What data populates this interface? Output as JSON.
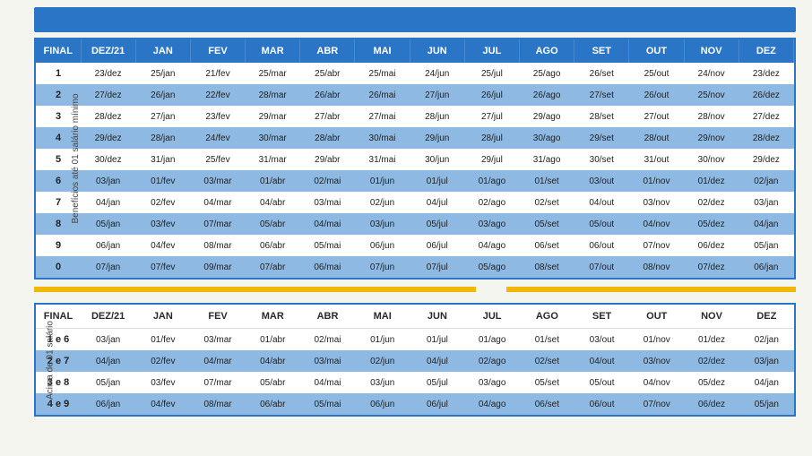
{
  "colors": {
    "primary": "#2b75c6",
    "row_alt": "#8db9e3",
    "row_base": "#ffffff",
    "accent": "#f2b705",
    "text": "#222222",
    "header_text": "#ffffff"
  },
  "headers": [
    "FINAL",
    "DEZ/21",
    "JAN",
    "FEV",
    "MAR",
    "ABR",
    "MAI",
    "JUN",
    "JUL",
    "AGO",
    "SET",
    "OUT",
    "NOV",
    "DEZ"
  ],
  "section1": {
    "label": "Benefícios até 01 salário mínimo",
    "rows": [
      [
        "1",
        "23/dez",
        "25/jan",
        "21/fev",
        "25/mar",
        "25/abr",
        "25/mai",
        "24/jun",
        "25/jul",
        "25/ago",
        "26/set",
        "25/out",
        "24/nov",
        "23/dez"
      ],
      [
        "2",
        "27/dez",
        "26/jan",
        "22/fev",
        "28/mar",
        "26/abr",
        "26/mai",
        "27/jun",
        "26/jul",
        "26/ago",
        "27/set",
        "26/out",
        "25/nov",
        "26/dez"
      ],
      [
        "3",
        "28/dez",
        "27/jan",
        "23/fev",
        "29/mar",
        "27/abr",
        "27/mai",
        "28/jun",
        "27/jul",
        "29/ago",
        "28/set",
        "27/out",
        "28/nov",
        "27/dez"
      ],
      [
        "4",
        "29/dez",
        "28/jan",
        "24/fev",
        "30/mar",
        "28/abr",
        "30/mai",
        "29/jun",
        "28/jul",
        "30/ago",
        "29/set",
        "28/out",
        "29/nov",
        "28/dez"
      ],
      [
        "5",
        "30/dez",
        "31/jan",
        "25/fev",
        "31/mar",
        "29/abr",
        "31/mai",
        "30/jun",
        "29/jul",
        "31/ago",
        "30/set",
        "31/out",
        "30/nov",
        "29/dez"
      ],
      [
        "6",
        "03/jan",
        "01/fev",
        "03/mar",
        "01/abr",
        "02/mai",
        "01/jun",
        "01/jul",
        "01/ago",
        "01/set",
        "03/out",
        "01/nov",
        "01/dez",
        "02/jan"
      ],
      [
        "7",
        "04/jan",
        "02/fev",
        "04/mar",
        "04/abr",
        "03/mai",
        "02/jun",
        "04/jul",
        "02/ago",
        "02/set",
        "04/out",
        "03/nov",
        "02/dez",
        "03/jan"
      ],
      [
        "8",
        "05/jan",
        "03/fev",
        "07/mar",
        "05/abr",
        "04/mai",
        "03/jun",
        "05/jul",
        "03/ago",
        "05/set",
        "05/out",
        "04/nov",
        "05/dez",
        "04/jan"
      ],
      [
        "9",
        "06/jan",
        "04/fev",
        "08/mar",
        "06/abr",
        "05/mai",
        "06/jun",
        "06/jul",
        "04/ago",
        "06/set",
        "06/out",
        "07/nov",
        "06/dez",
        "05/jan"
      ],
      [
        "0",
        "07/jan",
        "07/fev",
        "09/mar",
        "07/abr",
        "06/mai",
        "07/jun",
        "07/jul",
        "05/ago",
        "08/set",
        "07/out",
        "08/nov",
        "07/dez",
        "06/jan"
      ]
    ]
  },
  "section2": {
    "label": "Acima de 01 salário",
    "rows": [
      [
        "1 e 6",
        "03/jan",
        "01/fev",
        "03/mar",
        "01/abr",
        "02/mai",
        "01/jun",
        "01/jul",
        "01/ago",
        "01/set",
        "03/out",
        "01/nov",
        "01/dez",
        "02/jan"
      ],
      [
        "2 e 7",
        "04/jan",
        "02/fev",
        "04/mar",
        "04/abr",
        "03/mai",
        "02/jun",
        "04/jul",
        "02/ago",
        "02/set",
        "04/out",
        "03/nov",
        "02/dez",
        "03/jan"
      ],
      [
        "3 e 8",
        "05/jan",
        "03/fev",
        "07/mar",
        "05/abr",
        "04/mai",
        "03/jun",
        "05/jul",
        "03/ago",
        "05/set",
        "05/out",
        "04/nov",
        "05/dez",
        "04/jan"
      ],
      [
        "4 e 9",
        "06/jan",
        "04/fev",
        "08/mar",
        "06/abr",
        "05/mai",
        "06/jun",
        "06/jul",
        "04/ago",
        "06/set",
        "06/out",
        "07/nov",
        "06/dez",
        "05/jan"
      ]
    ]
  }
}
